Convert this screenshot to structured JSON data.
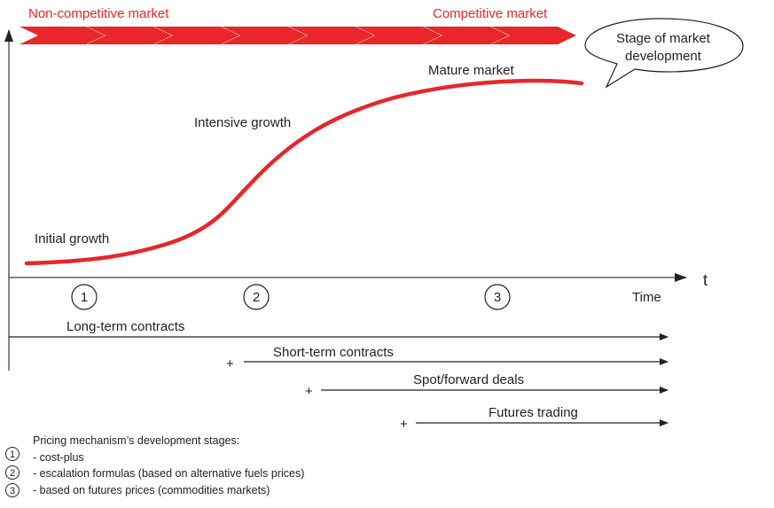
{
  "header": {
    "left_label": "Non-competitive market",
    "right_label": "Competitive market",
    "bubble_line1": "Stage of market",
    "bubble_line2": "development"
  },
  "colors": {
    "accent": "#e8262b",
    "text": "#222222"
  },
  "curve_labels": {
    "initial": "Initial growth",
    "intensive": "Intensive growth",
    "mature": "Mature market"
  },
  "axis": {
    "t_label": "t",
    "time_label": "Time"
  },
  "stages": [
    "1",
    "2",
    "3"
  ],
  "contracts": [
    {
      "label": "Long-term contracts",
      "prefix": ""
    },
    {
      "label": "Short-term contracts",
      "prefix": "+"
    },
    {
      "label": "Spot/forward deals",
      "prefix": "+"
    },
    {
      "label": "Futures trading",
      "prefix": "+"
    }
  ],
  "legend": {
    "title": "Pricing mechanism’s development stages:",
    "items": [
      {
        "num": "1",
        "text": "- cost-plus"
      },
      {
        "num": "2",
        "text": "- escalation formulas (based on alternative fuels prices)"
      },
      {
        "num": "3",
        "text": "- based on futures prices (commodities markets)"
      }
    ]
  }
}
